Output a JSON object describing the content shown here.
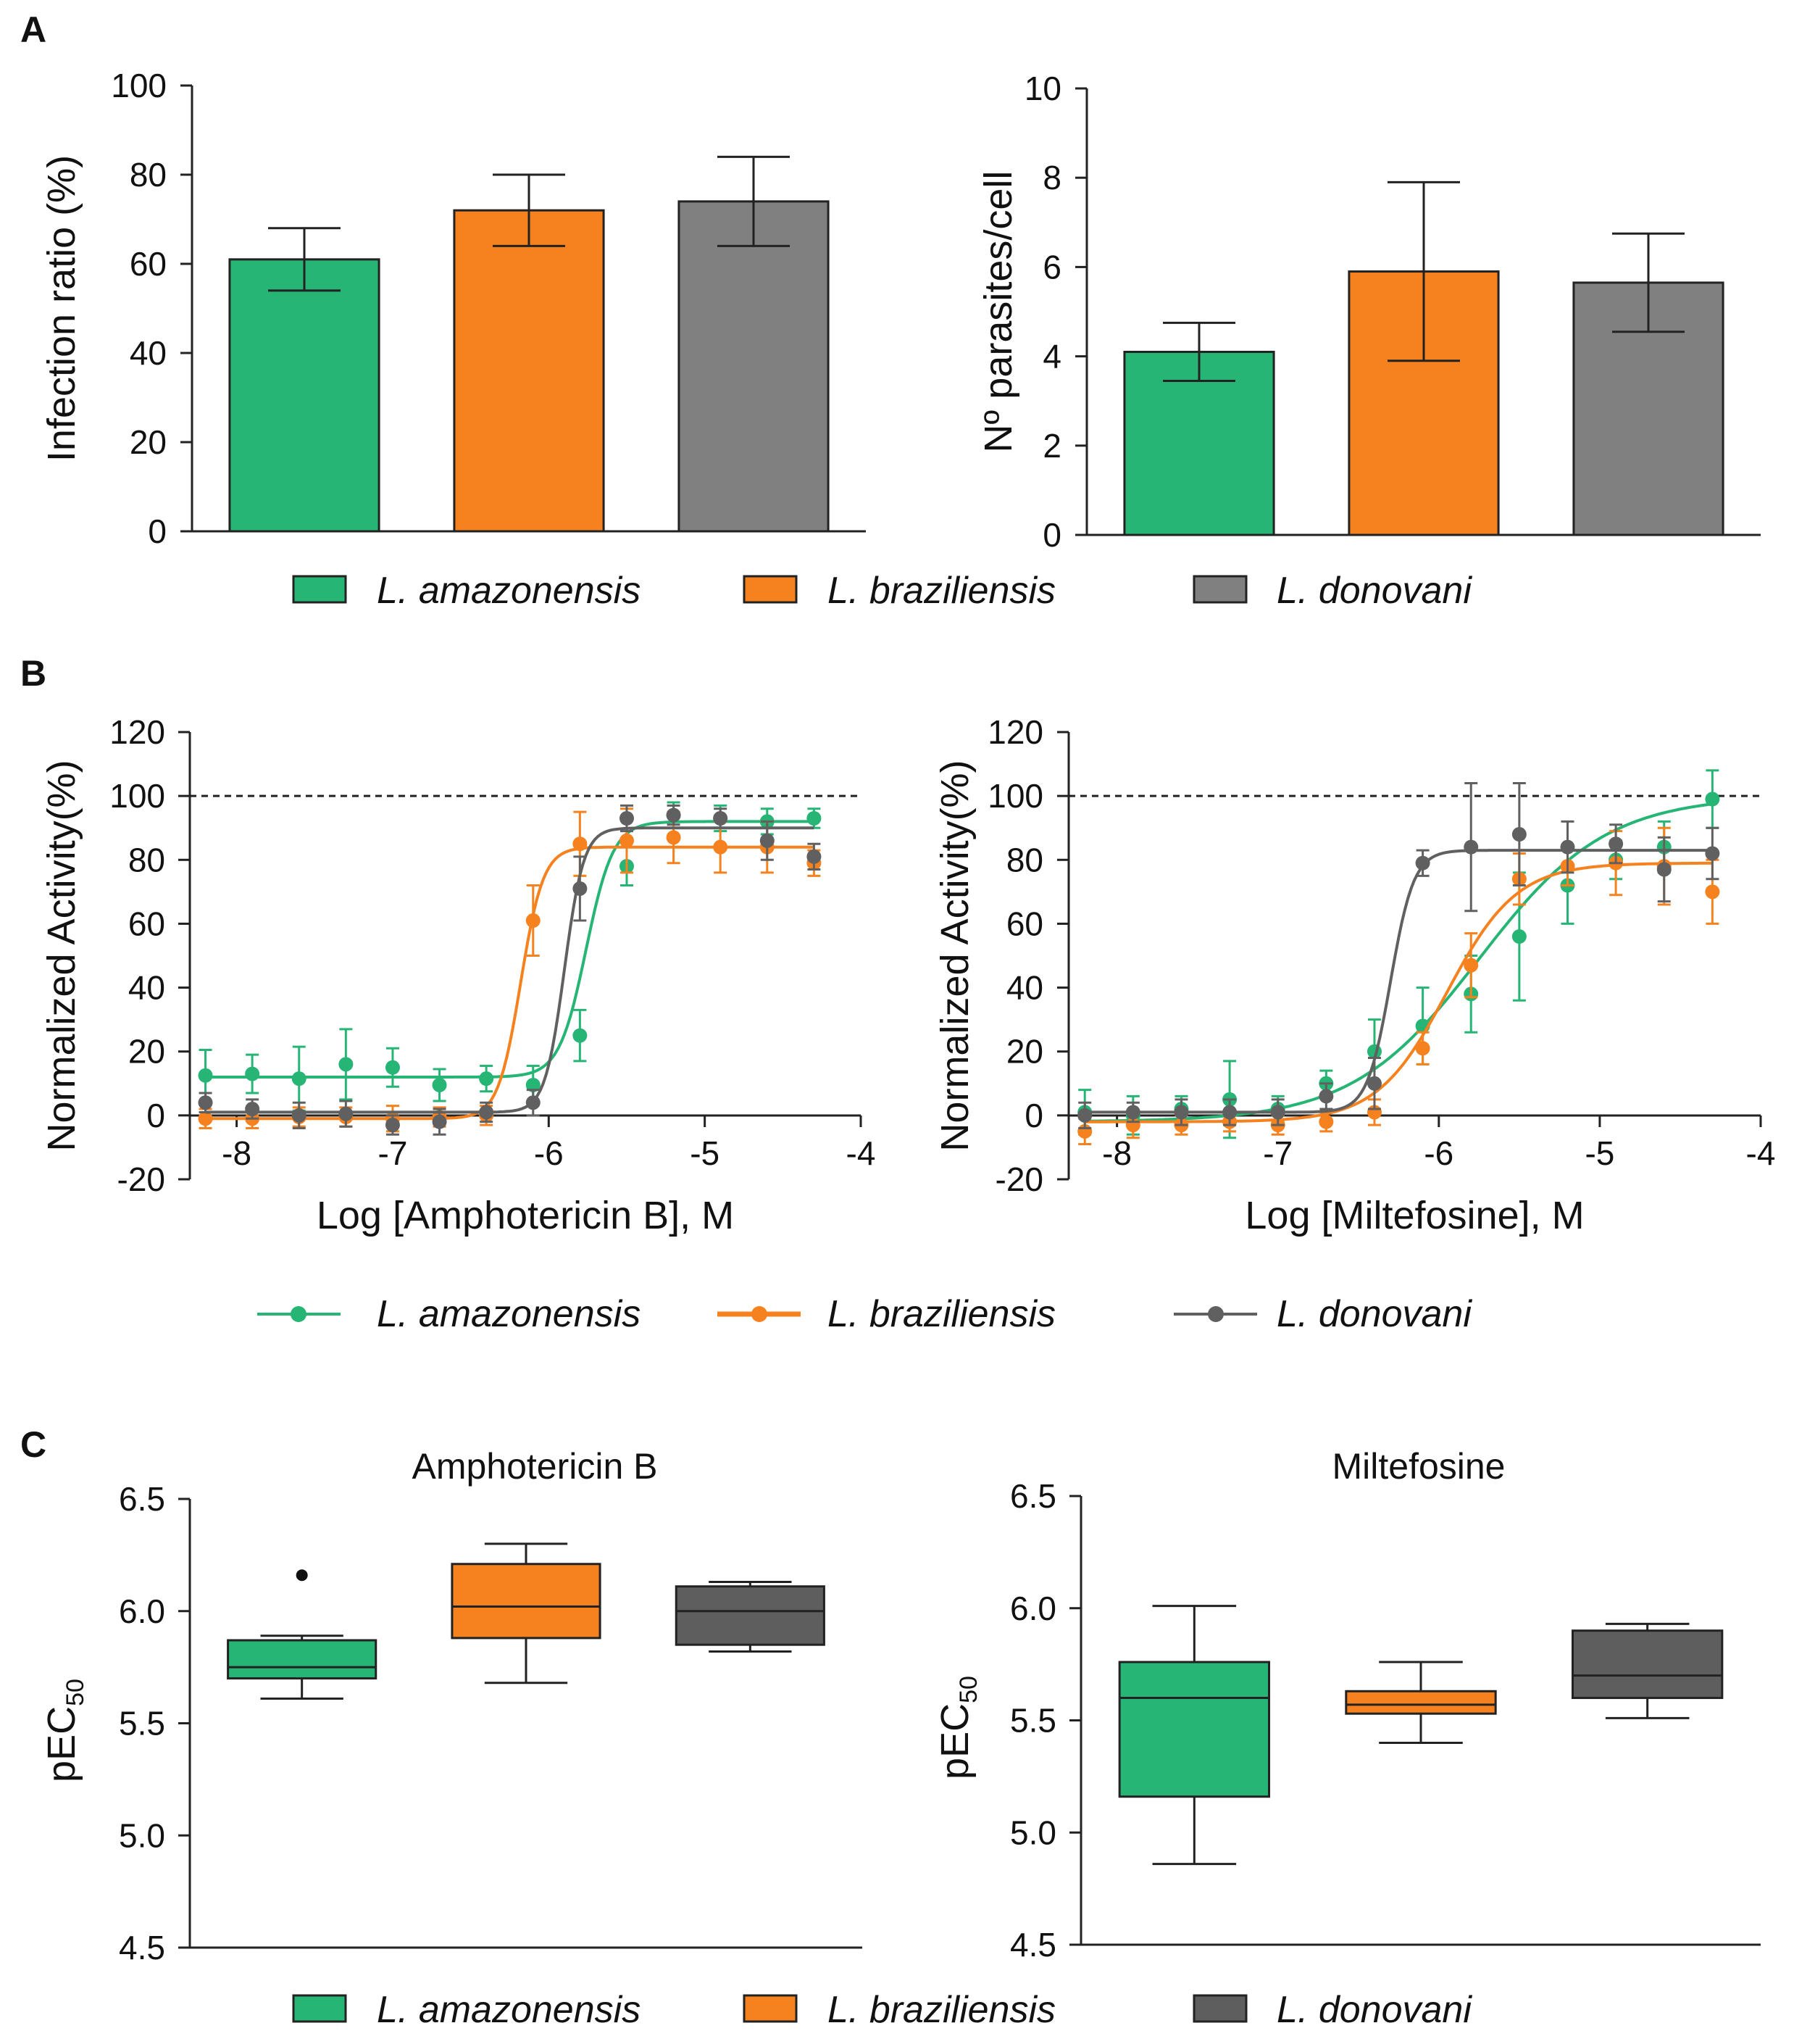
{
  "colors": {
    "amazonensis": "#26b574",
    "braziliensis": "#f5821f",
    "donovani_bar": "#808080",
    "donovani_curve": "#606060",
    "donovani_box": "#5e5e5e"
  },
  "legend": {
    "amazonensis": "L. amazonensis",
    "braziliensis": "L. braziliensis",
    "donovani": "L. donovani"
  },
  "panels": {
    "A": "A",
    "B": "B",
    "C": "C"
  },
  "chart_data": [
    {
      "id": "A1",
      "type": "bar",
      "panel": "A",
      "ylabel": "Infection ratio (%)",
      "xlabel": "",
      "ylim": [
        0,
        100
      ],
      "yticks": [
        0,
        20,
        40,
        60,
        80,
        100
      ],
      "categories": [
        "L. amazonensis",
        "L. braziliensis",
        "L. donovani"
      ],
      "values": [
        61,
        72,
        74
      ],
      "errors": [
        7,
        8,
        10
      ]
    },
    {
      "id": "A2",
      "type": "bar",
      "panel": "A",
      "ylabel": "Nº parasites/cell",
      "xlabel": "",
      "ylim": [
        0,
        10
      ],
      "yticks": [
        0,
        2,
        4,
        6,
        8,
        10
      ],
      "categories": [
        "L. amazonensis",
        "L. braziliensis",
        "L. donovani"
      ],
      "values": [
        4.1,
        5.9,
        5.65
      ],
      "errors": [
        0.65,
        2.0,
        1.1
      ]
    },
    {
      "id": "B1",
      "type": "line",
      "panel": "B",
      "xlabel": "Log [Amphotericin B], M",
      "ylabel": "Normalized Activity(%)",
      "xlim": [
        -8.3,
        -4
      ],
      "xticks": [
        -8,
        -7,
        -6,
        -5,
        -4
      ],
      "ylim": [
        -20,
        120
      ],
      "yticks": [
        -20,
        0,
        20,
        40,
        60,
        80,
        100,
        120
      ],
      "reference_line": 100,
      "series": [
        {
          "name": "L. amazonensis",
          "bottom": 12,
          "top": 92,
          "logec50": -5.76,
          "hill": 5,
          "x": [
            -8.2,
            -7.9,
            -7.6,
            -7.3,
            -7.0,
            -6.7,
            -6.4,
            -6.1,
            -5.8,
            -5.5,
            -5.2,
            -4.9,
            -4.6,
            -4.3
          ],
          "y": [
            12.5,
            13,
            11.5,
            16,
            15,
            9.5,
            11.5,
            9.5,
            25,
            78,
            94,
            93,
            92,
            93
          ],
          "err": [
            8,
            6,
            10,
            11,
            6,
            5,
            4,
            6,
            8,
            6,
            4,
            4,
            4,
            3
          ]
        },
        {
          "name": "L. braziliensis",
          "bottom": -1,
          "top": 84,
          "logec50": -6.18,
          "hill": 6,
          "x": [
            -8.2,
            -7.9,
            -7.6,
            -7.3,
            -7.0,
            -6.7,
            -6.4,
            -6.1,
            -5.8,
            -5.5,
            -5.2,
            -4.9,
            -4.6,
            -4.3
          ],
          "y": [
            -1,
            -1,
            -0.5,
            -0.5,
            -1,
            -0.5,
            0,
            61,
            85,
            86,
            87,
            84,
            84,
            79
          ],
          "err": [
            3,
            3,
            3,
            3,
            4,
            3,
            3,
            11,
            10,
            10,
            8,
            8,
            8,
            4
          ]
        },
        {
          "name": "L. donovani",
          "bottom": 1,
          "top": 90,
          "logec50": -5.9,
          "hill": 7,
          "x": [
            -8.2,
            -7.9,
            -7.6,
            -7.3,
            -7.0,
            -6.7,
            -6.4,
            -6.1,
            -5.8,
            -5.5,
            -5.2,
            -4.9,
            -4.6,
            -4.3
          ],
          "y": [
            4,
            2,
            0,
            0.5,
            -3,
            -2,
            1,
            4,
            71,
            93,
            94,
            93,
            86,
            81
          ],
          "err": [
            3,
            3,
            4,
            4,
            3,
            4,
            3,
            4,
            10,
            4,
            3,
            3,
            6,
            4
          ]
        }
      ]
    },
    {
      "id": "B2",
      "type": "line",
      "panel": "B",
      "xlabel": "Log [Miltefosine], M",
      "ylabel": "Normalized Activity(%)",
      "xlim": [
        -8.3,
        -4
      ],
      "xticks": [
        -8,
        -7,
        -6,
        -5,
        -4
      ],
      "ylim": [
        -20,
        120
      ],
      "yticks": [
        -20,
        0,
        20,
        40,
        60,
        80,
        100,
        120
      ],
      "reference_line": 100,
      "series": [
        {
          "name": "L. amazonensis",
          "bottom": -2,
          "top": 100,
          "logec50": -5.75,
          "hill": 1.1,
          "x": [
            -8.2,
            -7.9,
            -7.6,
            -7.3,
            -7.0,
            -6.7,
            -6.4,
            -6.1,
            -5.8,
            -5.5,
            -5.2,
            -4.9,
            -4.6,
            -4.3
          ],
          "y": [
            1,
            0,
            2,
            5,
            2,
            10,
            20,
            28,
            38,
            56,
            72,
            80,
            84,
            99
          ],
          "err": [
            7,
            6,
            4,
            12,
            4,
            4,
            10,
            12,
            12,
            20,
            12,
            6,
            8,
            9
          ]
        },
        {
          "name": "L. braziliensis",
          "bottom": -2,
          "top": 79,
          "logec50": -5.95,
          "hill": 2,
          "x": [
            -8.2,
            -7.9,
            -7.6,
            -7.3,
            -7.0,
            -6.7,
            -6.4,
            -6.1,
            -5.8,
            -5.5,
            -5.2,
            -4.9,
            -4.6,
            -4.3
          ],
          "y": [
            -5,
            -3,
            -3,
            -2,
            -3,
            -2,
            1,
            21,
            47,
            74,
            78,
            79,
            78,
            70
          ],
          "err": [
            4,
            4,
            3,
            3,
            3,
            3,
            4,
            5,
            10,
            8,
            6,
            10,
            12,
            10
          ]
        },
        {
          "name": "L. donovani",
          "bottom": 1,
          "top": 83,
          "logec50": -6.3,
          "hill": 6,
          "x": [
            -8.2,
            -7.9,
            -7.6,
            -7.3,
            -7.0,
            -6.7,
            -6.4,
            -6.1,
            -5.8,
            -5.5,
            -5.2,
            -4.9,
            -4.6,
            -4.3
          ],
          "y": [
            0,
            1,
            1,
            1,
            1,
            6,
            10,
            79,
            84,
            88,
            84,
            85,
            77,
            82
          ],
          "err": [
            4,
            3,
            4,
            4,
            4,
            4,
            8,
            4,
            20,
            16,
            8,
            6,
            10,
            8
          ]
        }
      ]
    },
    {
      "id": "C1",
      "type": "box",
      "panel": "C",
      "title": "Amphotericin B",
      "ylabel": "pEC50",
      "ylim": [
        4.5,
        6.5
      ],
      "yticks": [
        4.5,
        5.0,
        5.5,
        6.0,
        6.5
      ],
      "boxes": [
        {
          "name": "L. amazonensis",
          "min": 5.61,
          "q1": 5.7,
          "median": 5.75,
          "q3": 5.87,
          "max": 5.89,
          "outliers": [
            6.16
          ]
        },
        {
          "name": "L. braziliensis",
          "min": 5.68,
          "q1": 5.88,
          "median": 6.02,
          "q3": 6.21,
          "max": 6.3,
          "outliers": []
        },
        {
          "name": "L. donovani",
          "min": 5.82,
          "q1": 5.85,
          "median": 6.0,
          "q3": 6.11,
          "max": 6.13,
          "outliers": []
        }
      ]
    },
    {
      "id": "C2",
      "type": "box",
      "panel": "C",
      "title": "Miltefosine",
      "ylabel": "pEC50",
      "ylim": [
        4.5,
        6.5
      ],
      "yticks": [
        4.5,
        5.0,
        5.5,
        6.0,
        6.5
      ],
      "boxes": [
        {
          "name": "L. amazonensis",
          "min": 4.86,
          "q1": 5.16,
          "median": 5.6,
          "q3": 5.76,
          "max": 6.01,
          "outliers": []
        },
        {
          "name": "L. braziliensis",
          "min": 5.4,
          "q1": 5.53,
          "median": 5.57,
          "q3": 5.63,
          "max": 5.76,
          "outliers": []
        },
        {
          "name": "L. donovani",
          "min": 5.51,
          "q1": 5.6,
          "median": 5.7,
          "q3": 5.9,
          "max": 5.93,
          "outliers": []
        }
      ]
    }
  ]
}
